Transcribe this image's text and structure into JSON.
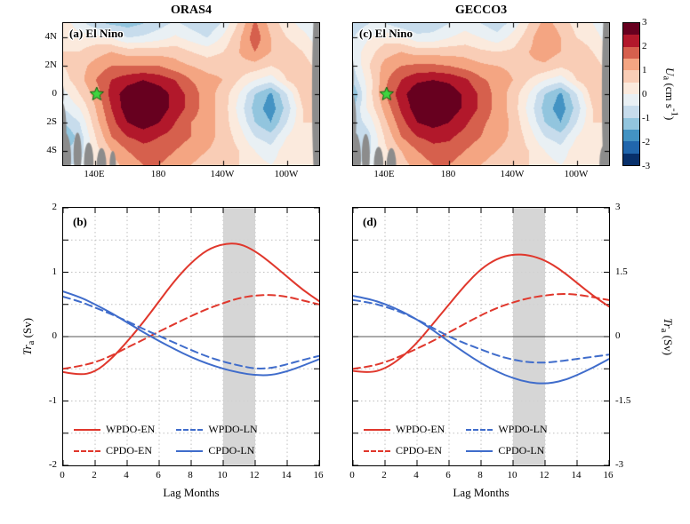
{
  "titles": {
    "left": "ORAS4",
    "right": "GECCO3"
  },
  "axes": {
    "lag_label": "Lag Months",
    "tr_label": {
      "it": "Tr",
      "sub": "a",
      "rest": " (Sv)"
    },
    "u_label": {
      "it": "U",
      "sub": "a",
      "pre": " (cm s",
      "sup": "-1",
      "post": ")"
    }
  },
  "colorbar": {
    "tick_values": [
      3,
      2,
      1,
      0,
      -1,
      -2,
      -3
    ],
    "level_min": -3,
    "level_max": 3,
    "level_step": 0.5,
    "colors": [
      "#08306b",
      "#2166ac",
      "#4393c3",
      "#92c5de",
      "#c7dcec",
      "#e9f0f4",
      "#fbeadd",
      "#f9cdb6",
      "#f4a582",
      "#d6604d",
      "#b2182b",
      "#67001f"
    ]
  },
  "map_axes": {
    "lon_range": [
      120,
      280
    ],
    "lat_range": [
      5,
      -5
    ],
    "x_ticks": [
      {
        "lon": 140,
        "label": "140E"
      },
      {
        "lon": 180,
        "label": "180"
      },
      {
        "lon": 220,
        "label": "140W"
      },
      {
        "lon": 260,
        "label": "100W"
      }
    ],
    "y_ticks": [
      {
        "lat": 4,
        "label": "4N"
      },
      {
        "lat": 2,
        "label": "2N"
      },
      {
        "lat": 0,
        "label": "0"
      },
      {
        "lat": -2,
        "label": "2S"
      },
      {
        "lat": -4,
        "label": "4S"
      }
    ]
  },
  "line_axes": {
    "x_ticks": [
      0,
      2,
      4,
      6,
      8,
      10,
      12,
      14,
      16
    ],
    "x_max": 16,
    "shaded_band": [
      10,
      12
    ]
  },
  "legend": [
    {
      "label": "WPDO-EN",
      "color": "#e0372c",
      "style": "solid"
    },
    {
      "label": "WPDO-LN",
      "color": "#3f6ccb",
      "style": "dashed"
    },
    {
      "label": "CPDO-EN",
      "color": "#e0372c",
      "style": "dashed"
    },
    {
      "label": "CPDO-LN",
      "color": "#3f6ccb",
      "style": "solid"
    }
  ],
  "colors": {
    "red": "#e0372c",
    "blue": "#3f6ccb",
    "band": "#d2d2d2",
    "land": "#8c8c8c",
    "star_fill": "#3fd43f",
    "star_edge": "#0c5a0c"
  },
  "chart_data": [
    {
      "type": "heatmap",
      "id": "a",
      "panel_label": "(a) El Nino",
      "dataset": "ORAS4",
      "units": "cm s^-1",
      "colormap_range": [
        -3,
        3
      ],
      "lon_start": 120,
      "lon_step": 10,
      "lat_start": 5,
      "lat_step": -1,
      "star": {
        "lon": 141,
        "lat": 0
      },
      "land": [
        [
          119,
          -2.5,
          3,
          2.0
        ],
        [
          121,
          -4.5,
          4,
          1.8
        ],
        [
          129,
          -4.2,
          2.5,
          1.5
        ],
        [
          136,
          -4.8,
          3,
          1.4
        ],
        [
          144,
          -5,
          3,
          1.2
        ],
        [
          151,
          -5,
          2,
          1.0
        ],
        [
          119,
          0,
          1.5,
          0.8
        ],
        [
          279.5,
          0,
          4,
          8
        ]
      ],
      "grid": [
        [
          0.3,
          -0.3,
          -0.8,
          -1.1,
          -1.2,
          -1.0,
          -0.7,
          -0.4,
          -0.7,
          -1.0,
          -0.4,
          0.6,
          1.6,
          0.8,
          0.2,
          -0.2,
          -0.5
        ],
        [
          0.4,
          0.2,
          0.2,
          0.0,
          -0.5,
          -0.4,
          -0.2,
          0.1,
          -0.2,
          -0.5,
          0.1,
          0.9,
          1.8,
          1.0,
          0.5,
          0.2,
          -0.3
        ],
        [
          0.5,
          0.5,
          0.8,
          1.0,
          0.8,
          0.8,
          0.8,
          0.8,
          0.5,
          0.3,
          0.5,
          1.0,
          1.5,
          1.0,
          0.8,
          0.5,
          0.0
        ],
        [
          0.5,
          0.8,
          1.2,
          1.5,
          1.5,
          1.5,
          1.5,
          1.2,
          1.0,
          0.8,
          0.8,
          0.8,
          0.8,
          0.5,
          0.8,
          0.8,
          0.3
        ],
        [
          0.3,
          0.8,
          1.5,
          2.0,
          2.3,
          2.5,
          2.3,
          2.0,
          1.5,
          1.2,
          1.0,
          0.5,
          0.0,
          -0.3,
          0.5,
          1.0,
          0.5
        ],
        [
          -0.2,
          0.5,
          1.2,
          2.2,
          2.8,
          3.0,
          2.8,
          2.3,
          1.8,
          1.2,
          0.8,
          0.0,
          -1.0,
          -1.6,
          -0.5,
          0.8,
          0.8
        ],
        [
          -0.5,
          0.0,
          1.0,
          2.0,
          2.8,
          3.0,
          2.8,
          2.3,
          1.8,
          1.2,
          0.8,
          -0.2,
          -1.2,
          -1.8,
          -0.8,
          0.5,
          0.8
        ],
        [
          -1.0,
          -0.5,
          0.8,
          1.8,
          2.5,
          2.8,
          2.5,
          2.0,
          1.5,
          1.2,
          0.8,
          0.0,
          -1.0,
          -1.5,
          -0.5,
          0.5,
          0.5
        ],
        [
          -1.5,
          -0.8,
          0.5,
          1.5,
          2.0,
          2.2,
          2.0,
          1.8,
          1.5,
          1.2,
          0.8,
          0.3,
          -0.5,
          -0.8,
          0.0,
          0.5,
          0.3
        ],
        [
          -1.0,
          -0.8,
          0.3,
          1.0,
          1.5,
          1.8,
          1.8,
          1.5,
          1.2,
          1.0,
          0.8,
          0.5,
          0.0,
          -0.3,
          0.3,
          0.5,
          0.2
        ],
        [
          -0.5,
          -0.5,
          0.2,
          0.8,
          1.2,
          1.5,
          1.5,
          1.2,
          1.0,
          0.8,
          0.8,
          0.5,
          0.2,
          0.0,
          0.3,
          0.3,
          0.2
        ]
      ]
    },
    {
      "type": "heatmap",
      "id": "c",
      "panel_label": "(c) El Nino",
      "dataset": "GECCO3",
      "units": "cm s^-1",
      "colormap_range": [
        -3,
        3
      ],
      "lon_start": 120,
      "lon_step": 10,
      "lat_start": 5,
      "lat_step": -1,
      "star": {
        "lon": 141,
        "lat": 0
      },
      "land": [
        [
          119,
          -2,
          3,
          2.2
        ],
        [
          121,
          -4.5,
          4,
          1.8
        ],
        [
          128,
          -4.3,
          2.5,
          1.5
        ],
        [
          136,
          -5,
          3,
          1.3
        ],
        [
          144,
          -5,
          3,
          1.2
        ],
        [
          119,
          1.2,
          1.6,
          1.6
        ],
        [
          279.5,
          0,
          4,
          8
        ],
        [
          277,
          -4.8,
          3,
          1.2
        ]
      ],
      "grid": [
        [
          -0.8,
          -0.5,
          -0.5,
          -0.8,
          -1.0,
          -0.8,
          -0.5,
          -0.2,
          -0.5,
          -0.8,
          -0.3,
          0.5,
          1.2,
          0.8,
          0.3,
          0.0,
          -0.5
        ],
        [
          -0.5,
          0.0,
          0.3,
          0.1,
          -0.3,
          -0.3,
          0.0,
          0.2,
          0.0,
          -0.3,
          0.2,
          0.8,
          1.5,
          1.0,
          0.5,
          0.3,
          -0.3
        ],
        [
          -0.3,
          0.3,
          0.8,
          1.0,
          0.8,
          0.8,
          0.8,
          0.8,
          0.6,
          0.5,
          0.6,
          1.0,
          1.3,
          1.0,
          0.8,
          0.5,
          0.0
        ],
        [
          -0.5,
          0.5,
          1.2,
          1.5,
          1.6,
          1.6,
          1.5,
          1.3,
          1.1,
          1.0,
          0.9,
          0.9,
          0.9,
          0.6,
          0.8,
          0.8,
          0.3
        ],
        [
          -0.8,
          0.3,
          1.4,
          2.0,
          2.4,
          2.5,
          2.4,
          2.1,
          1.6,
          1.3,
          1.0,
          0.5,
          0.0,
          -0.3,
          0.5,
          1.0,
          0.5
        ],
        [
          -1.5,
          0.3,
          1.5,
          2.3,
          2.9,
          3.0,
          2.8,
          2.4,
          1.9,
          1.3,
          0.8,
          0.0,
          -1.0,
          -1.6,
          -0.5,
          0.8,
          0.8
        ],
        [
          -1.0,
          0.2,
          1.2,
          2.1,
          2.8,
          2.9,
          2.8,
          2.4,
          1.9,
          1.3,
          0.8,
          -0.2,
          -1.2,
          -1.8,
          -0.8,
          0.5,
          0.8
        ],
        [
          -0.8,
          -0.3,
          0.9,
          1.8,
          2.5,
          2.7,
          2.5,
          2.1,
          1.6,
          1.3,
          0.9,
          0.0,
          -1.0,
          -1.5,
          -0.5,
          0.5,
          0.5
        ],
        [
          -1.2,
          -0.6,
          0.6,
          1.5,
          2.0,
          2.2,
          2.1,
          1.8,
          1.5,
          1.2,
          0.9,
          0.3,
          -0.5,
          -0.8,
          0.0,
          0.5,
          0.3
        ],
        [
          -0.8,
          -0.6,
          0.4,
          1.0,
          1.5,
          1.8,
          1.8,
          1.5,
          1.2,
          1.0,
          0.8,
          0.5,
          0.0,
          -0.3,
          0.3,
          0.5,
          0.2
        ],
        [
          -0.5,
          -0.4,
          0.3,
          0.8,
          1.2,
          1.5,
          1.5,
          1.2,
          1.0,
          0.8,
          0.8,
          0.5,
          0.2,
          0.0,
          0.3,
          0.3,
          0.2
        ]
      ]
    },
    {
      "type": "line",
      "id": "b",
      "panel_label": "(b)",
      "axis_side": "left",
      "ylim": [
        -2,
        2
      ],
      "grid_step": 0.5,
      "y_tick_values": [
        2,
        1,
        0,
        -1,
        -2
      ],
      "y_tick_labels": [
        "2",
        "1",
        "0",
        "-1",
        "-2"
      ],
      "x": [
        0,
        1,
        2,
        3,
        4,
        5,
        6,
        7,
        8,
        9,
        10,
        11,
        12,
        13,
        14,
        15,
        16
      ],
      "series": [
        {
          "name": "WPDO-EN",
          "color": "#e0372c",
          "style": "solid",
          "values": [
            -0.55,
            -0.6,
            -0.55,
            -0.35,
            -0.08,
            0.22,
            0.55,
            0.88,
            1.15,
            1.35,
            1.44,
            1.45,
            1.33,
            1.14,
            0.93,
            0.72,
            0.55
          ]
        },
        {
          "name": "CPDO-EN",
          "color": "#e0372c",
          "style": "dashed",
          "values": [
            -0.5,
            -0.46,
            -0.4,
            -0.3,
            -0.17,
            -0.05,
            0.08,
            0.2,
            0.32,
            0.43,
            0.52,
            0.6,
            0.64,
            0.65,
            0.62,
            0.56,
            0.5
          ]
        },
        {
          "name": "WPDO-LN",
          "color": "#3f6ccb",
          "style": "dashed",
          "values": [
            0.62,
            0.55,
            0.45,
            0.35,
            0.24,
            0.12,
            0.01,
            -0.1,
            -0.21,
            -0.31,
            -0.39,
            -0.45,
            -0.5,
            -0.49,
            -0.43,
            -0.36,
            -0.3
          ]
        },
        {
          "name": "CPDO-LN",
          "color": "#3f6ccb",
          "style": "solid",
          "values": [
            0.7,
            0.62,
            0.5,
            0.37,
            0.22,
            0.07,
            -0.07,
            -0.2,
            -0.32,
            -0.42,
            -0.5,
            -0.56,
            -0.6,
            -0.6,
            -0.54,
            -0.45,
            -0.35
          ]
        }
      ]
    },
    {
      "type": "line",
      "id": "d",
      "panel_label": "(d)",
      "axis_side": "right",
      "ylim": [
        -3,
        3
      ],
      "grid_step": 0.75,
      "y_tick_values": [
        3,
        1.5,
        0,
        -1.5,
        -3
      ],
      "y_tick_labels": [
        "3",
        "1.5",
        "0",
        "-1.5",
        "-3"
      ],
      "x": [
        0,
        1,
        2,
        3,
        4,
        5,
        6,
        7,
        8,
        9,
        10,
        11,
        12,
        13,
        14,
        15,
        16
      ],
      "series": [
        {
          "name": "WPDO-EN",
          "color": "#e0372c",
          "style": "solid",
          "values": [
            -0.8,
            -0.85,
            -0.75,
            -0.5,
            -0.15,
            0.3,
            0.75,
            1.2,
            1.58,
            1.82,
            1.92,
            1.9,
            1.78,
            1.55,
            1.25,
            0.95,
            0.7
          ]
        },
        {
          "name": "CPDO-EN",
          "color": "#e0372c",
          "style": "dashed",
          "values": [
            -0.75,
            -0.7,
            -0.6,
            -0.45,
            -0.28,
            -0.1,
            0.1,
            0.3,
            0.5,
            0.67,
            0.8,
            0.9,
            0.96,
            1.0,
            0.98,
            0.92,
            0.85
          ]
        },
        {
          "name": "WPDO-LN",
          "color": "#3f6ccb",
          "style": "dashed",
          "values": [
            0.85,
            0.8,
            0.7,
            0.57,
            0.4,
            0.2,
            0.0,
            -0.16,
            -0.3,
            -0.44,
            -0.54,
            -0.6,
            -0.61,
            -0.57,
            -0.52,
            -0.47,
            -0.42
          ]
        },
        {
          "name": "CPDO-LN",
          "color": "#3f6ccb",
          "style": "solid",
          "values": [
            0.95,
            0.88,
            0.76,
            0.6,
            0.4,
            0.15,
            -0.12,
            -0.38,
            -0.62,
            -0.82,
            -0.97,
            -1.07,
            -1.1,
            -1.04,
            -0.9,
            -0.72,
            -0.52
          ]
        }
      ]
    }
  ]
}
